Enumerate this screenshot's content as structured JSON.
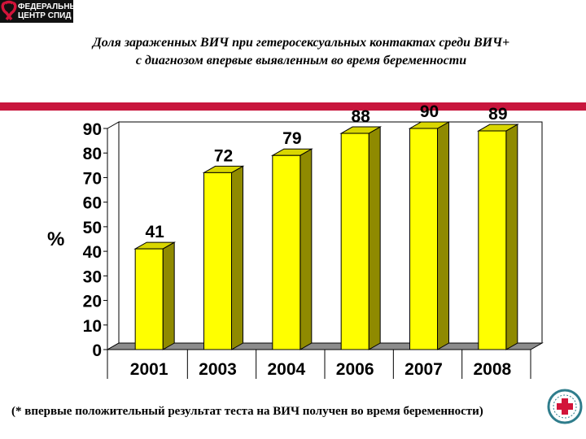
{
  "logo": {
    "line1": "ФЕДЕРАЛЬНЫЙ",
    "line2": "ЦЕНТР СПИД"
  },
  "title": {
    "line1": "Доля зараженных ВИЧ при гетеросексуальных контактах среди ВИЧ+",
    "line2": "с диагнозом впервые выявленным во время беременности"
  },
  "chart_data": {
    "type": "bar",
    "categories": [
      "2001",
      "2003",
      "2004",
      "2006",
      "2007",
      "2008"
    ],
    "values": [
      41,
      72,
      79,
      88,
      90,
      89
    ],
    "value_labels": [
      "41",
      "72",
      "79",
      "88",
      "90",
      "89"
    ],
    "ylabel": "%",
    "ylim": [
      0,
      90
    ],
    "yticks": [
      "0",
      "10",
      "20",
      "30",
      "40",
      "50",
      "60",
      "70",
      "80",
      "90"
    ],
    "grid": false,
    "style": "3d",
    "bar_color": "#ffff00",
    "bar_side_color": "#8f8a00",
    "bar_top_color": "#d9d600"
  },
  "footnote": "(* впервые положительный результат теста на ВИЧ получен во время беременности)",
  "colors": {
    "accent_bar": "#c8163d",
    "logo_background": "#111111"
  }
}
